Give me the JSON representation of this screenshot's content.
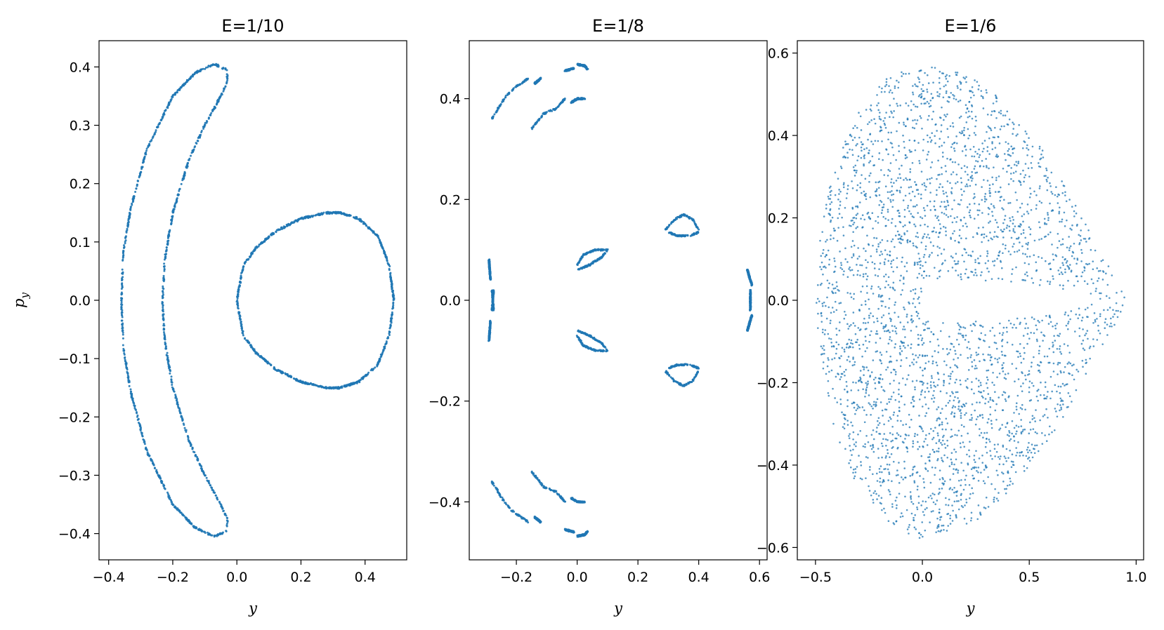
{
  "chart_data": [
    {
      "type": "scatter",
      "title": "E=1/10",
      "xlabel": "y",
      "ylabel_main": "p",
      "ylabel_sub": "y",
      "xlim": [
        -0.43,
        0.53
      ],
      "ylim": [
        -0.445,
        0.445
      ],
      "xticks": [
        -0.4,
        -0.2,
        0.0,
        0.2,
        0.4
      ],
      "xtick_labels": [
        "−0.4",
        "−0.2",
        "0.0",
        "0.2",
        "0.4"
      ],
      "yticks": [
        -0.4,
        -0.3,
        -0.2,
        -0.1,
        0.0,
        0.1,
        0.2,
        0.3,
        0.4
      ],
      "ytick_labels": [
        "−0.4",
        "−0.3",
        "−0.2",
        "−0.1",
        "0.0",
        "0.1",
        "0.2",
        "0.3",
        "0.4"
      ],
      "color": "#1f77b4",
      "series": [
        {
          "kind": "ring",
          "points": [
            [
              0.0,
              0.0
            ],
            [
              0.02,
              0.06
            ],
            [
              0.06,
              0.09
            ],
            [
              0.12,
              0.118
            ],
            [
              0.2,
              0.14
            ],
            [
              0.28,
              0.15
            ],
            [
              0.32,
              0.15
            ],
            [
              0.38,
              0.14
            ],
            [
              0.44,
              0.11
            ],
            [
              0.475,
              0.06
            ],
            [
              0.49,
              0.0
            ],
            [
              0.475,
              -0.06
            ],
            [
              0.44,
              -0.11
            ],
            [
              0.38,
              -0.14
            ],
            [
              0.32,
              -0.15
            ],
            [
              0.28,
              -0.15
            ],
            [
              0.2,
              -0.14
            ],
            [
              0.12,
              -0.118
            ],
            [
              0.06,
              -0.09
            ],
            [
              0.02,
              -0.06
            ]
          ],
          "count": 900
        },
        {
          "kind": "ring",
          "points": [
            [
              -0.07,
              0.405
            ],
            [
              -0.03,
              0.395
            ],
            [
              -0.03,
              0.375
            ],
            [
              -0.05,
              0.35
            ],
            [
              -0.1,
              0.3
            ],
            [
              -0.15,
              0.24
            ],
            [
              -0.2,
              0.15
            ],
            [
              -0.225,
              0.07
            ],
            [
              -0.232,
              0.0
            ],
            [
              -0.225,
              -0.07
            ],
            [
              -0.2,
              -0.15
            ],
            [
              -0.15,
              -0.24
            ],
            [
              -0.1,
              -0.3
            ],
            [
              -0.05,
              -0.35
            ],
            [
              -0.03,
              -0.375
            ],
            [
              -0.03,
              -0.395
            ],
            [
              -0.07,
              -0.405
            ],
            [
              -0.13,
              -0.39
            ],
            [
              -0.2,
              -0.35
            ],
            [
              -0.28,
              -0.26
            ],
            [
              -0.33,
              -0.16
            ],
            [
              -0.355,
              -0.08
            ],
            [
              -0.36,
              0.0
            ],
            [
              -0.355,
              0.08
            ],
            [
              -0.33,
              0.16
            ],
            [
              -0.28,
              0.26
            ],
            [
              -0.2,
              0.35
            ],
            [
              -0.13,
              0.39
            ]
          ],
          "count": 1100
        }
      ]
    },
    {
      "type": "scatter",
      "title": "E=1/8",
      "xlabel": "y",
      "xlim": [
        -0.355,
        0.625
      ],
      "ylim": [
        -0.515,
        0.515
      ],
      "xticks": [
        -0.2,
        0.0,
        0.2,
        0.4,
        0.6
      ],
      "xtick_labels": [
        "−0.2",
        "0.0",
        "0.2",
        "0.4",
        "0.6"
      ],
      "yticks": [
        -0.4,
        -0.2,
        0.0,
        0.2,
        0.4
      ],
      "ytick_labels": [
        "−0.4",
        "−0.2",
        "0.0",
        "0.2",
        "0.4"
      ],
      "color": "#1f77b4",
      "series": [
        {
          "kind": "segments",
          "segments": [
            [
              [
                -0.28,
                0.36
              ],
              [
                -0.24,
                0.4
              ],
              [
                -0.21,
                0.42
              ],
              [
                -0.16,
                0.44
              ]
            ],
            [
              [
                -0.15,
                0.34
              ],
              [
                -0.11,
                0.37
              ],
              [
                -0.07,
                0.38
              ],
              [
                -0.04,
                0.4
              ]
            ],
            [
              [
                -0.14,
                0.43
              ],
              [
                -0.12,
                0.44
              ]
            ],
            [
              [
                -0.04,
                0.455
              ],
              [
                -0.01,
                0.46
              ]
            ],
            [
              [
                0.0,
                0.468
              ],
              [
                0.025,
                0.465
              ],
              [
                0.035,
                0.458
              ]
            ],
            [
              [
                -0.02,
                0.392
              ],
              [
                0.0,
                0.4
              ],
              [
                0.025,
                0.4
              ]
            ],
            [
              [
                -0.29,
                0.08
              ],
              [
                -0.285,
                0.04
              ]
            ],
            [
              [
                -0.29,
                -0.08
              ],
              [
                -0.285,
                -0.04
              ]
            ],
            [
              [
                -0.28,
                0.02
              ],
              [
                -0.275,
                -0.02
              ]
            ],
            [
              [
                -0.0,
                0.07
              ],
              [
                0.02,
                0.09
              ],
              [
                0.06,
                0.1
              ],
              [
                0.1,
                0.1
              ]
            ],
            [
              [
                0.0,
                0.06
              ],
              [
                0.04,
                0.07
              ],
              [
                0.08,
                0.085
              ],
              [
                0.1,
                0.1
              ]
            ],
            [
              [
                0.29,
                0.14
              ],
              [
                0.32,
                0.16
              ],
              [
                0.35,
                0.17
              ],
              [
                0.38,
                0.16
              ],
              [
                0.4,
                0.14
              ]
            ],
            [
              [
                0.3,
                0.135
              ],
              [
                0.33,
                0.128
              ],
              [
                0.37,
                0.128
              ],
              [
                0.4,
                0.135
              ]
            ],
            [
              [
                0.56,
                0.06
              ],
              [
                0.575,
                0.03
              ]
            ],
            [
              [
                0.56,
                -0.06
              ],
              [
                0.575,
                -0.03
              ]
            ],
            [
              [
                0.57,
                0.02
              ],
              [
                0.57,
                -0.02
              ]
            ]
          ],
          "mirror_y": true,
          "count": 1400
        }
      ]
    },
    {
      "type": "scatter",
      "title": "E=1/6",
      "xlabel": "y",
      "xlim": [
        -0.585,
        1.035
      ],
      "ylim": [
        -0.63,
        0.63
      ],
      "xticks": [
        -0.5,
        0.0,
        0.5,
        1.0
      ],
      "xtick_labels": [
        "−0.5",
        "0.0",
        "0.5",
        "1.0"
      ],
      "yticks": [
        -0.6,
        -0.4,
        -0.2,
        0.0,
        0.2,
        0.4,
        0.6
      ],
      "ytick_labels": [
        "−0.6",
        "−0.4",
        "−0.2",
        "0.0",
        "0.2",
        "0.4",
        "0.6"
      ],
      "color": "#1f77b4",
      "series": [
        {
          "kind": "region",
          "outer": [
            [
              0.0,
              0.57
            ],
            [
              0.15,
              0.56
            ],
            [
              0.3,
              0.52
            ],
            [
              0.45,
              0.44
            ],
            [
              0.6,
              0.34
            ],
            [
              0.75,
              0.2
            ],
            [
              0.88,
              0.08
            ],
            [
              0.96,
              0.0
            ],
            [
              0.88,
              -0.08
            ],
            [
              0.75,
              -0.2
            ],
            [
              0.6,
              -0.34
            ],
            [
              0.45,
              -0.44
            ],
            [
              0.3,
              -0.52
            ],
            [
              0.15,
              -0.56
            ],
            [
              0.0,
              -0.58
            ],
            [
              -0.15,
              -0.55
            ],
            [
              -0.3,
              -0.46
            ],
            [
              -0.42,
              -0.3
            ],
            [
              -0.48,
              -0.12
            ],
            [
              -0.5,
              0.0
            ],
            [
              -0.48,
              0.15
            ],
            [
              -0.42,
              0.32
            ],
            [
              -0.3,
              0.46
            ],
            [
              -0.15,
              0.55
            ]
          ],
          "hole_x": [
            0.0,
            0.85
          ],
          "hole_halfheight": 0.05,
          "count": 3200
        }
      ]
    }
  ]
}
